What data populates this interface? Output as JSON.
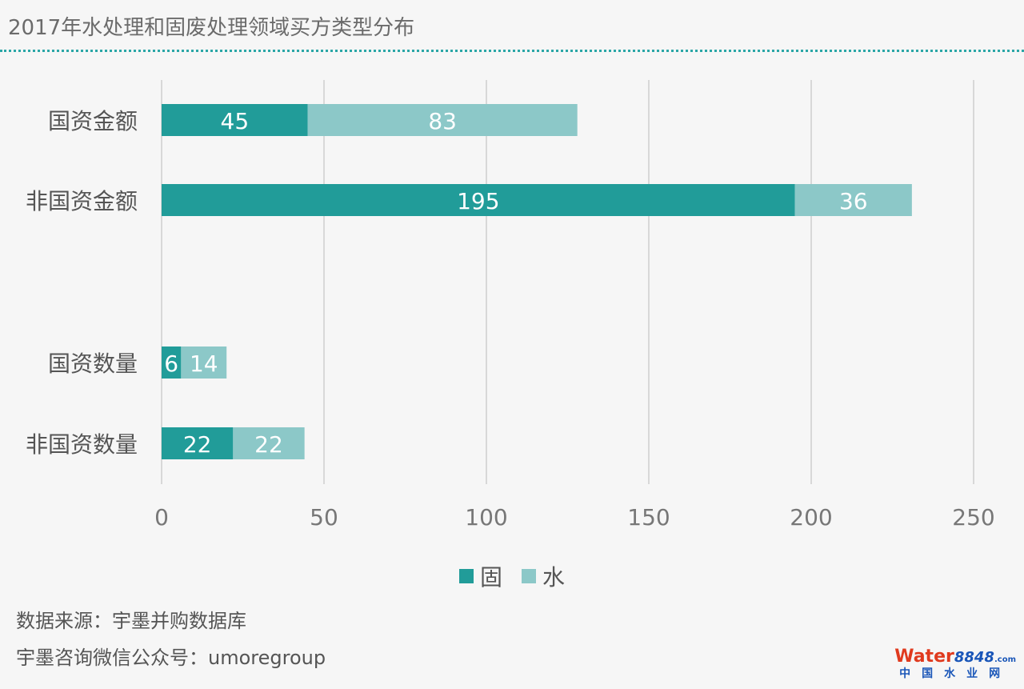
{
  "title": "2017年水处理和固废处理领域买方类型分布",
  "chart_data": {
    "type": "bar",
    "orientation": "horizontal",
    "stacked": true,
    "categories": [
      "国资金额",
      "非国资金额",
      "国资数量",
      "非国资数量"
    ],
    "series": [
      {
        "name": "固",
        "values": [
          45,
          195,
          6,
          22
        ],
        "color": "#219c99"
      },
      {
        "name": "水",
        "values": [
          83,
          36,
          14,
          22
        ],
        "color": "#8cc8c8"
      }
    ],
    "x_ticks": [
      0,
      50,
      100,
      150,
      200,
      250
    ],
    "xlim": [
      0,
      250
    ],
    "grid": "vertical",
    "legend_position": "bottom"
  },
  "legend": {
    "items": [
      {
        "label": "固",
        "color": "#219c99"
      },
      {
        "label": "水",
        "color": "#8cc8c8"
      }
    ]
  },
  "footer": {
    "source": "数据来源：宇墨并购数据库",
    "account": "宇墨咨询微信公众号：umoregroup"
  },
  "watermark": {
    "word_part1": "Wat",
    "word_part2": "er",
    "word_part3": "8848",
    "word_part4": ".com",
    "subtitle": "中国水业网"
  }
}
